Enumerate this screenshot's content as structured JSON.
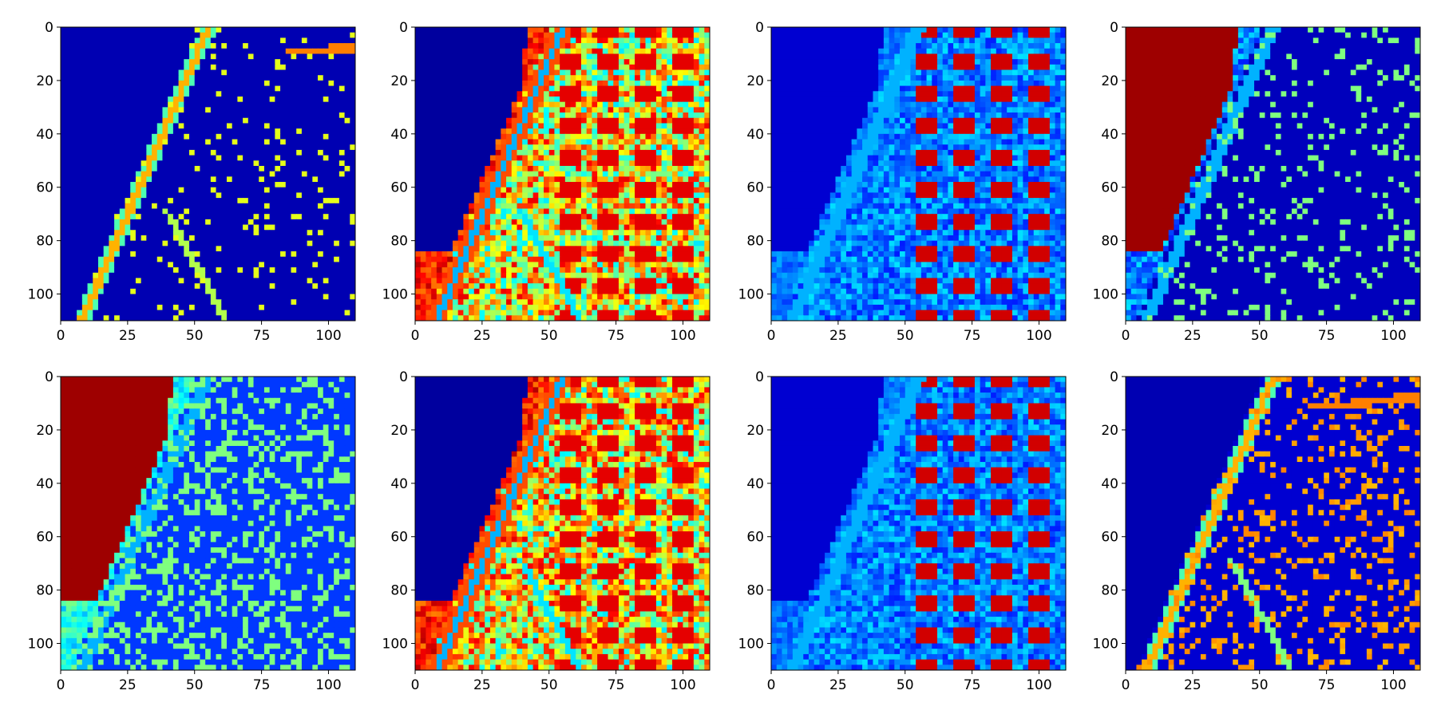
{
  "colormap": "jet",
  "colormap_stops": [
    "#00007f",
    "#0000ff",
    "#007fff",
    "#00ffff",
    "#7fff7f",
    "#ffff00",
    "#ff7f00",
    "#ff0000",
    "#7f0000"
  ],
  "chart_data": [
    {
      "type": "heatmap",
      "panel": 1,
      "title": "",
      "xlabel": "",
      "ylabel": "",
      "xlim": [
        0,
        110
      ],
      "ylim": [
        110,
        0
      ],
      "xticks": [
        "0",
        "25",
        "50",
        "75",
        "100"
      ],
      "yticks": [
        "0",
        "20",
        "40",
        "60",
        "80",
        "100"
      ],
      "content": "road-edge activation: curved road strong, water and fields low"
    },
    {
      "type": "heatmap",
      "panel": 2,
      "title": "",
      "xlabel": "",
      "ylabel": "",
      "xlim": [
        0,
        110
      ],
      "ylim": [
        110,
        0
      ],
      "xticks": [
        "0",
        "25",
        "50",
        "75",
        "100"
      ],
      "yticks": [
        "0",
        "20",
        "40",
        "60",
        "80",
        "100"
      ],
      "content": "built-up area strong activation, water low"
    },
    {
      "type": "heatmap",
      "panel": 3,
      "title": "",
      "xlabel": "",
      "ylabel": "",
      "xlim": [
        0,
        110
      ],
      "ylim": [
        110,
        0
      ],
      "xticks": [
        "0",
        "25",
        "50",
        "75",
        "100"
      ],
      "yticks": [
        "0",
        "20",
        "40",
        "60",
        "80",
        "100"
      ],
      "content": "building blocks strong activation"
    },
    {
      "type": "heatmap",
      "panel": 4,
      "title": "",
      "xlabel": "",
      "ylabel": "",
      "xlim": [
        0,
        110
      ],
      "ylim": [
        110,
        0
      ],
      "xticks": [
        "0",
        "25",
        "50",
        "75",
        "100"
      ],
      "yticks": [
        "0",
        "20",
        "40",
        "60",
        "80",
        "100"
      ],
      "content": "water region strong activation (upper-left), sparse features elsewhere"
    },
    {
      "type": "heatmap",
      "panel": 5,
      "title": "",
      "xlabel": "",
      "ylabel": "",
      "xlim": [
        0,
        110
      ],
      "ylim": [
        110,
        0
      ],
      "xticks": [
        "0",
        "25",
        "50",
        "75",
        "100"
      ],
      "yticks": [
        "0",
        "20",
        "40",
        "60",
        "80",
        "100"
      ],
      "content": "water region strong activation, vegetation medium"
    },
    {
      "type": "heatmap",
      "panel": 6,
      "title": "",
      "xlabel": "",
      "ylabel": "",
      "xlim": [
        0,
        110
      ],
      "ylim": [
        110,
        0
      ],
      "xticks": [
        "0",
        "25",
        "50",
        "75",
        "100"
      ],
      "yticks": [
        "0",
        "20",
        "40",
        "60",
        "80",
        "100"
      ],
      "content": "built-up area strong activation, water low"
    },
    {
      "type": "heatmap",
      "panel": 7,
      "title": "",
      "xlabel": "",
      "ylabel": "",
      "xlim": [
        0,
        110
      ],
      "ylim": [
        110,
        0
      ],
      "xticks": [
        "0",
        "25",
        "50",
        "75",
        "100"
      ],
      "yticks": [
        "0",
        "20",
        "40",
        "60",
        "80",
        "100"
      ],
      "content": "individual buildings strong activation"
    },
    {
      "type": "heatmap",
      "panel": 8,
      "title": "",
      "xlabel": "",
      "ylabel": "",
      "xlim": [
        0,
        110
      ],
      "ylim": [
        110,
        0
      ],
      "xticks": [
        "0",
        "25",
        "50",
        "75",
        "100"
      ],
      "yticks": [
        "0",
        "20",
        "40",
        "60",
        "80",
        "100"
      ],
      "content": "road and scattered feature activation"
    }
  ]
}
